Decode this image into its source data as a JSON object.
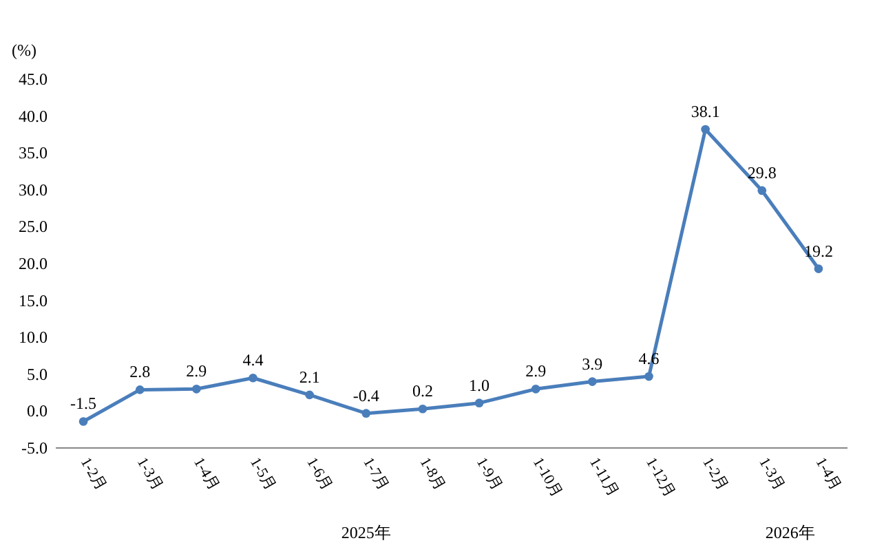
{
  "chart_data": {
    "type": "line",
    "ylabel": "(%)",
    "categories": [
      "1-2月",
      "1-3月",
      "1-4月",
      "1-5月",
      "1-6月",
      "1-7月",
      "1-8月",
      "1-9月",
      "1-10月",
      "1-11月",
      "1-12月",
      "1-2月",
      "1-3月",
      "1-4月"
    ],
    "series": [
      {
        "color": "#4a7ebb",
        "values": [
          -1.5,
          2.8,
          2.9,
          4.4,
          2.1,
          -0.4,
          0.2,
          1.0,
          2.9,
          3.9,
          4.6,
          38.1,
          29.8,
          19.2
        ],
        "value_labels": [
          "-1.5",
          "2.8",
          "2.9",
          "4.4",
          "2.1",
          "-0.4",
          "0.2",
          "1.0",
          "2.9",
          "3.9",
          "4.6",
          "38.1",
          "29.8",
          "19.2"
        ]
      }
    ],
    "ylim": [
      -5,
      45
    ],
    "yticks": [
      {
        "value": -5,
        "label": "-5.0"
      },
      {
        "value": 0,
        "label": "0.0"
      },
      {
        "value": 5,
        "label": "5.0"
      },
      {
        "value": 10,
        "label": "10.0"
      },
      {
        "value": 15,
        "label": "15.0"
      },
      {
        "value": 20,
        "label": "20.0"
      },
      {
        "value": 25,
        "label": "25.0"
      },
      {
        "value": 30,
        "label": "30.0"
      },
      {
        "value": 35,
        "label": "35.0"
      },
      {
        "value": 40,
        "label": "40.0"
      },
      {
        "value": 45,
        "label": "45.0"
      }
    ],
    "annotations": [
      "2025年",
      "2026年"
    ],
    "marker": "circle",
    "grid": false,
    "legend": false
  }
}
